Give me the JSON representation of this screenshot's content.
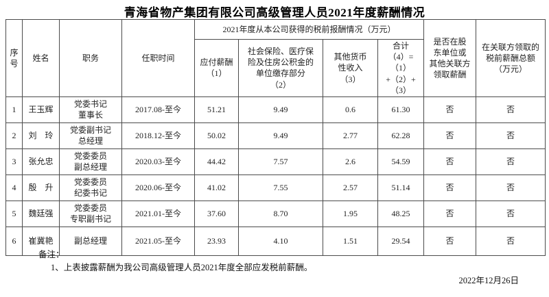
{
  "page": {
    "title": "青海省物产集团有限公司高级管理人员2021年度薪酬情况",
    "date": "2022年12月26日"
  },
  "table": {
    "headers": {
      "index": "序\n号",
      "name": "姓名",
      "position": "职务",
      "tenure": "任职时间",
      "comp_group": "2021年度从本公司获得的税前报酬情况（万元）",
      "payable": "应付薪酬\n（1）",
      "social": "社会保险、医疗保\n险及住房公积金的\n单位缴存部分\n（2）",
      "other_income": "其他货币\n性收入\n（3）",
      "total": "合计\n（4）=（1）\n+（2）+\n（3）",
      "related_party": "是否在股\n东单位或\n其他关联方\n领取薪酬",
      "related_total": "在关联方领取的\n税前薪酬总额\n（万元）"
    },
    "rows": [
      {
        "no": "1",
        "name": "王玉辉",
        "position": "党委书记\n董事长",
        "tenure": "2017.08-至今",
        "payable": "51.21",
        "social": "9.49",
        "other": "0.6",
        "total": "61.30",
        "related": "否",
        "related_total": "否"
      },
      {
        "no": "2",
        "name": "刘　玲",
        "position": "党委副书记\n总经理",
        "tenure": "2018.12-至今",
        "payable": "50.02",
        "social": "9.49",
        "other": "2.77",
        "total": "62.28",
        "related": "否",
        "related_total": "否"
      },
      {
        "no": "3",
        "name": "张允忠",
        "position": "党委委员\n副总经理",
        "tenure": "2020.03-至今",
        "payable": "44.42",
        "social": "7.57",
        "other": "2.6",
        "total": "54.59",
        "related": "否",
        "related_total": "否"
      },
      {
        "no": "4",
        "name": "殷　升",
        "position": "党委委员\n纪委书记",
        "tenure": "2020.06-至今",
        "payable": "41.02",
        "social": "7.55",
        "other": "2.57",
        "total": "51.14",
        "related": "否",
        "related_total": "否"
      },
      {
        "no": "5",
        "name": "魏廷强",
        "position": "党委委员\n专职副书记",
        "tenure": "2021.01-至今",
        "payable": "37.60",
        "social": "8.70",
        "other": "1.95",
        "total": "48.25",
        "related": "否",
        "related_total": "否"
      },
      {
        "no": "6",
        "name": "崔冀艳",
        "position": "副总经理",
        "tenure": "2021.05-至今",
        "payable": "23.93",
        "social": "4.10",
        "other": "1.51",
        "total": "29.54",
        "related": "否",
        "related_total": "否"
      }
    ]
  },
  "notes": {
    "label": "备注：",
    "items": [
      "1、上表披露薪酬为我公司高级管理人员2021年度全部应发税前薪酬。"
    ]
  }
}
